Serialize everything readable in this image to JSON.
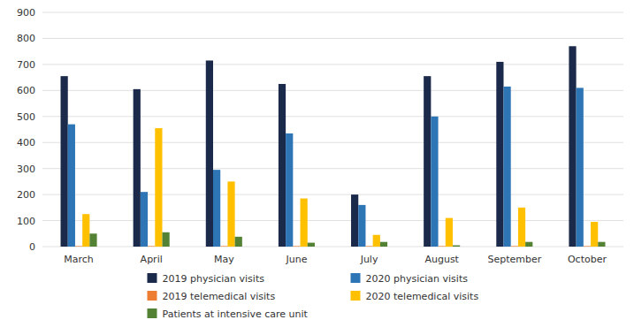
{
  "chart_data": {
    "type": "bar",
    "categories": [
      "March",
      "April",
      "May",
      "June",
      "July",
      "August",
      "September",
      "October"
    ],
    "series": [
      {
        "name": "2019 physician visits",
        "color": "#1b2a4a",
        "values": [
          655,
          605,
          715,
          625,
          200,
          655,
          710,
          770
        ]
      },
      {
        "name": "2020 physician visits",
        "color": "#2e75b6",
        "values": [
          470,
          210,
          295,
          435,
          160,
          500,
          615,
          610
        ]
      },
      {
        "name": "2019 telemedical visits",
        "color": "#ed7d31",
        "values": [
          2,
          2,
          2,
          2,
          2,
          2,
          2,
          2
        ]
      },
      {
        "name": "2020 telemedical visits",
        "color": "#ffc000",
        "values": [
          125,
          455,
          250,
          185,
          45,
          110,
          150,
          95
        ]
      },
      {
        "name": "Patients at intensive care unit",
        "color": "#548235",
        "values": [
          50,
          55,
          38,
          15,
          18,
          5,
          18,
          18
        ]
      }
    ],
    "ylim": [
      0,
      900
    ],
    "yticks": [
      0,
      100,
      200,
      300,
      400,
      500,
      600,
      700,
      800,
      900
    ],
    "grid": true,
    "legend": "bottom"
  }
}
